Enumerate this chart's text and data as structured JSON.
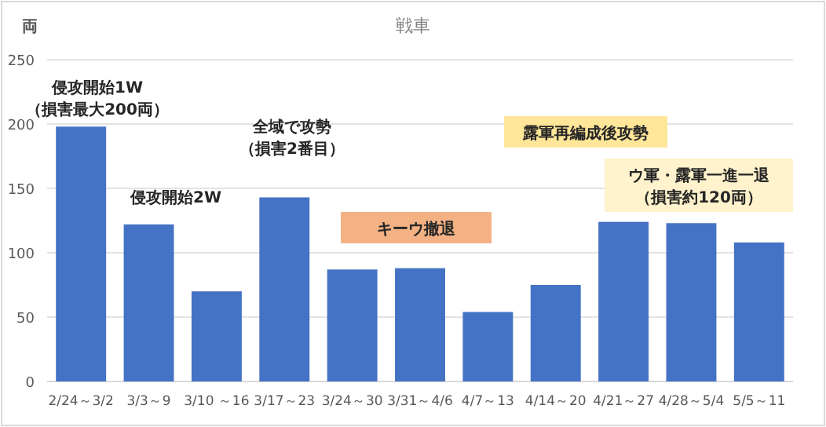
{
  "chart_data": {
    "type": "bar",
    "title": "戦車",
    "ylabel": "両",
    "categories": [
      "2/24～3/2",
      "3/3～9",
      "3/10 ～16",
      "3/17～23",
      "3/24～30",
      "3/31～4/6",
      "4/7～13",
      "4/14～20",
      "4/21～27",
      "4/28～5/4",
      "5/5～11"
    ],
    "values": [
      198,
      122,
      70,
      143,
      87,
      88,
      54,
      75,
      124,
      123,
      108
    ],
    "color": "#4472c4",
    "ylim": [
      0,
      250
    ],
    "yticks": [
      0,
      50,
      100,
      150,
      200,
      250
    ],
    "grid": "y",
    "annotations": [
      "侵攻開始1W（損害最大200両）",
      "侵攻開始2W",
      "全域で攻勢（損害2番目）",
      "キーウ撤退",
      "露軍再編成後攻勢",
      "ウ軍・露軍一進一退（損害約120両）"
    ]
  }
}
